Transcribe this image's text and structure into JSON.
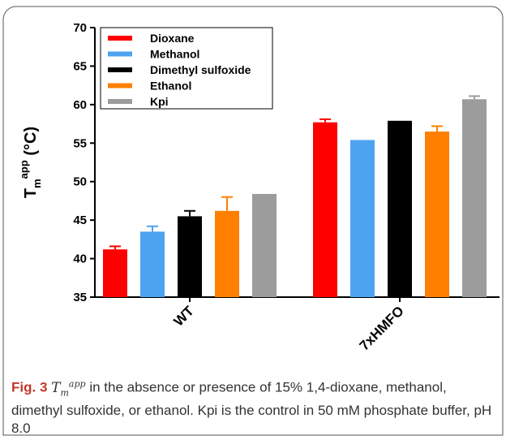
{
  "chart_data": {
    "type": "bar",
    "categories": [
      "WT",
      "7xHMFO"
    ],
    "series": [
      {
        "name": "Dioxane",
        "color": "#ff0000",
        "values": [
          41.2,
          57.7
        ],
        "errors": [
          0.4,
          0.4
        ]
      },
      {
        "name": "Methanol",
        "color": "#4da3ef",
        "values": [
          43.5,
          55.4
        ],
        "errors": [
          0.7,
          0
        ]
      },
      {
        "name": "Dimethyl sulfoxide",
        "color": "#000000",
        "values": [
          45.5,
          57.9
        ],
        "errors": [
          0.7,
          0
        ]
      },
      {
        "name": "Ethanol",
        "color": "#ff8000",
        "values": [
          46.2,
          56.5
        ],
        "errors": [
          1.8,
          0.7
        ]
      },
      {
        "name": "Kpi",
        "color": "#9c9c9c",
        "values": [
          48.4,
          60.7
        ],
        "errors": [
          0,
          0.4
        ]
      }
    ],
    "ylabel": "T",
    "ylabel_sub": "m",
    "ylabel_sup": "app",
    "ylabel_unit": "(°C)",
    "ylim": [
      35,
      70
    ],
    "yticks": [
      35,
      40,
      45,
      50,
      55,
      60,
      65,
      70
    ],
    "legend_position": "top-left"
  },
  "caption": {
    "label": "Fig. 3",
    "symbol": "T",
    "symbol_sub": "m",
    "symbol_sup": "app",
    "text": "in the absence or presence of 15% 1,4-dioxane, methanol, dimethyl sulfoxide, or ethanol. Kpi is the control in 50 mM phosphate buffer, pH 8.0"
  }
}
